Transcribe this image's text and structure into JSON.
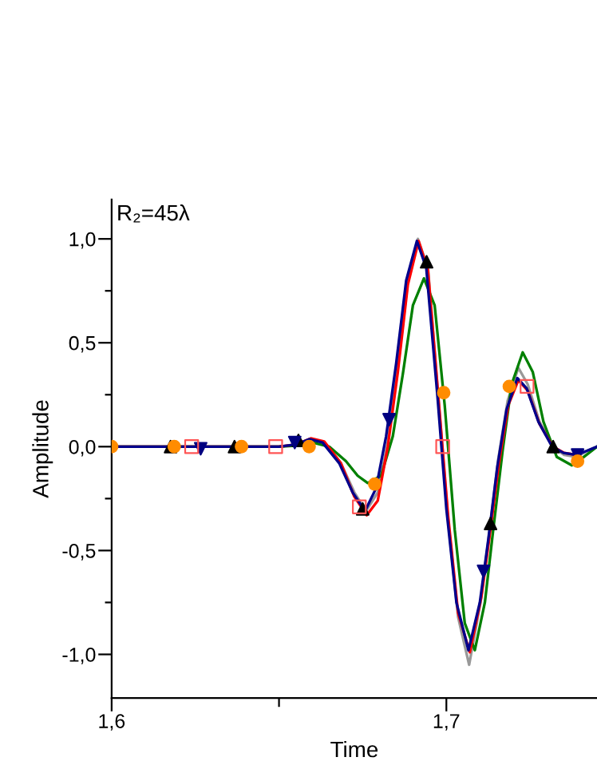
{
  "chart_data": {
    "type": "line",
    "xlabel": "Time",
    "ylabel": "Amplitude",
    "annotations": [
      "R₂=45λ"
    ],
    "xlim": [
      1.6,
      1.745
    ],
    "ylim": [
      -1.21,
      1.19
    ],
    "xticks": [
      {
        "value": 1.6,
        "label": "1,6"
      },
      {
        "value": 1.65,
        "label": null
      },
      {
        "value": 1.7,
        "label": "1,7"
      }
    ],
    "yticks": [
      {
        "value": -1.0,
        "label": "-1,0"
      },
      {
        "value": -0.75,
        "label": null
      },
      {
        "value": -0.5,
        "label": "-0,5"
      },
      {
        "value": -0.25,
        "label": null
      },
      {
        "value": 0.0,
        "label": "0,0"
      },
      {
        "value": 0.25,
        "label": null
      },
      {
        "value": 0.5,
        "label": "0,5"
      },
      {
        "value": 0.75,
        "label": null
      },
      {
        "value": 1.0,
        "label": "1,0"
      }
    ],
    "grid": false,
    "legend": false,
    "series": [
      {
        "color": "#999999",
        "x": [
          1.6,
          1.65,
          1.655,
          1.6595,
          1.6635,
          1.6685,
          1.6725,
          1.676,
          1.6795,
          1.6825,
          1.6855,
          1.6885,
          1.6915,
          1.6945,
          1.6978,
          1.7005,
          1.7035,
          1.7068,
          1.7102,
          1.7128,
          1.7155,
          1.7183,
          1.7215,
          1.7243,
          1.7278,
          1.7318,
          1.7352,
          1.739,
          1.742,
          1.745
        ],
        "values": [
          0,
          0,
          0.01,
          0.035,
          0.02,
          -0.08,
          -0.22,
          -0.31,
          -0.22,
          0.02,
          0.38,
          0.8,
          1.0,
          0.86,
          0.2,
          -0.35,
          -0.82,
          -1.05,
          -0.75,
          -0.42,
          -0.06,
          0.22,
          0.38,
          0.3,
          0.12,
          0.0,
          -0.04,
          -0.05,
          -0.02,
          0.0
        ]
      },
      {
        "color": "#008000",
        "x": [
          1.6,
          1.65,
          1.655,
          1.66,
          1.665,
          1.67,
          1.6735,
          1.6765,
          1.6805,
          1.684,
          1.687,
          1.69,
          1.6933,
          1.6965,
          1.6995,
          1.7025,
          1.7055,
          1.7085,
          1.7115,
          1.714,
          1.7168,
          1.7195,
          1.7228,
          1.7258,
          1.729,
          1.733,
          1.7375,
          1.741,
          1.745
        ],
        "values": [
          0,
          0,
          0.005,
          0.02,
          0.0,
          -0.07,
          -0.14,
          -0.175,
          -0.14,
          0.05,
          0.35,
          0.68,
          0.81,
          0.68,
          0.2,
          -0.4,
          -0.85,
          -0.98,
          -0.75,
          -0.4,
          -0.02,
          0.3,
          0.454,
          0.36,
          0.12,
          -0.05,
          -0.09,
          -0.05,
          0.0
        ]
      },
      {
        "color": "#ff0000",
        "x": [
          1.6,
          1.65,
          1.655,
          1.6595,
          1.6635,
          1.6685,
          1.6725,
          1.6762,
          1.6795,
          1.6825,
          1.6855,
          1.6885,
          1.6917,
          1.6945,
          1.6978,
          1.7005,
          1.7035,
          1.707,
          1.7105,
          1.713,
          1.7157,
          1.7185,
          1.7215,
          1.7243,
          1.7278,
          1.7318,
          1.7352,
          1.739
        ],
        "values": [
          0,
          0,
          0.01,
          0.04,
          0.025,
          -0.08,
          -0.24,
          -0.33,
          -0.26,
          0.0,
          0.36,
          0.78,
          0.99,
          0.85,
          0.2,
          -0.33,
          -0.8,
          -0.99,
          -0.72,
          -0.42,
          -0.08,
          0.2,
          0.32,
          0.27,
          0.11,
          0.0,
          -0.03,
          -0.04
        ]
      },
      {
        "color": "#00008b",
        "x": [
          1.6,
          1.65,
          1.655,
          1.659,
          1.663,
          1.668,
          1.672,
          1.6757,
          1.679,
          1.682,
          1.685,
          1.688,
          1.6912,
          1.694,
          1.6973,
          1.7,
          1.703,
          1.7066,
          1.71,
          1.7125,
          1.7152,
          1.718,
          1.7212,
          1.724,
          1.7275,
          1.7316,
          1.735,
          1.7388,
          1.742,
          1.745
        ],
        "values": [
          0,
          0,
          0.01,
          0.036,
          0.02,
          -0.08,
          -0.22,
          -0.31,
          -0.2,
          0.05,
          0.4,
          0.8,
          0.99,
          0.86,
          0.25,
          -0.3,
          -0.75,
          -0.98,
          -0.75,
          -0.45,
          -0.1,
          0.18,
          0.33,
          0.28,
          0.12,
          0.0,
          -0.03,
          -0.04,
          -0.02,
          0.0
        ]
      },
      {
        "type": "scatter",
        "color": "#000000",
        "marker": "triangle",
        "x": [
          1.6176,
          1.6367,
          1.6558,
          1.675,
          1.6941,
          1.7132,
          1.7319
        ],
        "values": [
          0,
          0,
          0.03,
          -0.3,
          0.89,
          -0.37,
          0.0
        ]
      },
      {
        "type": "scatter",
        "color": "#000080",
        "marker": "triangle_down",
        "x": [
          1.6266,
          1.6547,
          1.6829,
          1.7111,
          1.7392
        ],
        "values": [
          -0.01,
          0.02,
          0.13,
          -0.6,
          -0.04
        ]
      },
      {
        "type": "scatter",
        "color": "#ff8c00",
        "marker": "circle",
        "x": [
          1.6,
          1.6187,
          1.6388,
          1.659,
          1.6786,
          1.6992,
          1.7188,
          1.7392
        ],
        "values": [
          0,
          0,
          0,
          0.0,
          -0.18,
          0.26,
          0.29,
          -0.07
        ]
      },
      {
        "type": "scatter",
        "color": "#ff5555",
        "marker": "square",
        "x": [
          1.6239,
          1.649,
          1.674,
          1.6989,
          1.7241
        ],
        "values": [
          0,
          0,
          -0.29,
          0.0,
          0.29
        ]
      }
    ]
  }
}
